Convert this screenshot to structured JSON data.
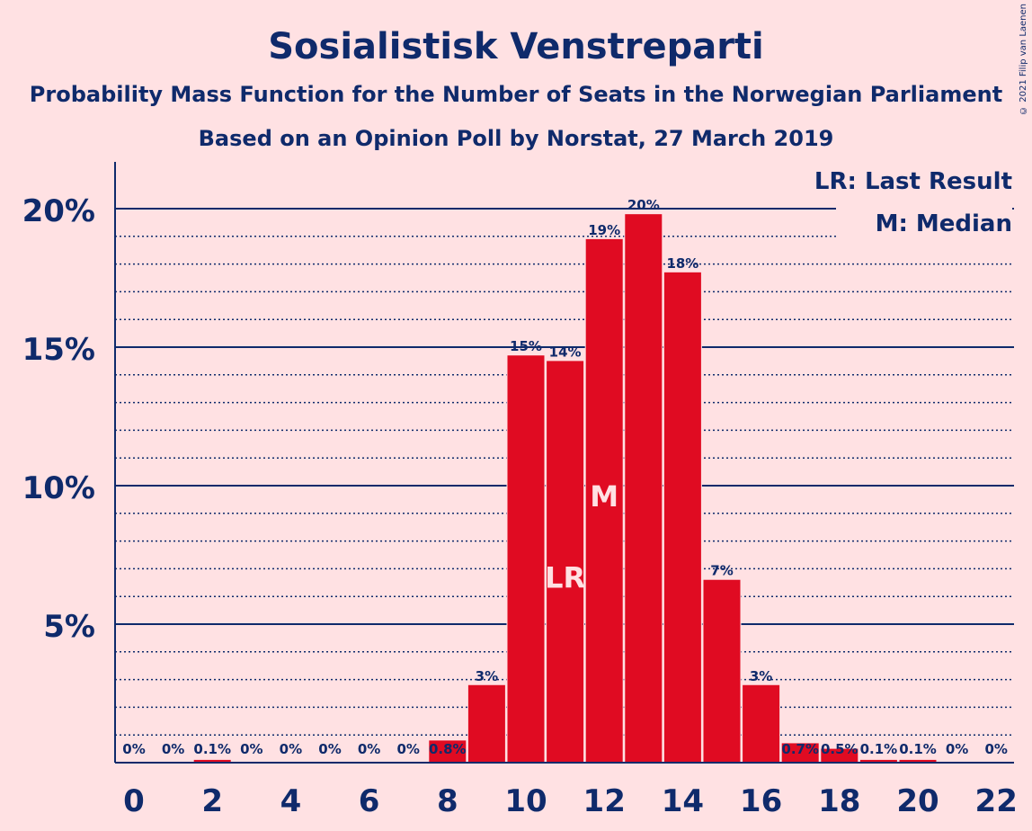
{
  "copyright": "© 2021 Filip van Laenen",
  "chart_data": {
    "type": "bar",
    "title": "Sosialistisk Venstreparti",
    "subtitle": "Probability Mass Function for the Number of Seats in the Norwegian Parliament",
    "subtitle2": "Based on an Opinion Poll by Norstat, 27 March 2019",
    "xlabel": "",
    "ylabel": "",
    "ylim": [
      0,
      21.5
    ],
    "y_ticks": [
      "5%",
      "10%",
      "15%",
      "20%"
    ],
    "y_tick_values": [
      5,
      10,
      15,
      20
    ],
    "x_tick_labels": [
      "0",
      "2",
      "4",
      "6",
      "8",
      "10",
      "12",
      "14",
      "16",
      "18",
      "20",
      "22"
    ],
    "categories": [
      0,
      1,
      2,
      3,
      4,
      5,
      6,
      7,
      8,
      9,
      10,
      11,
      12,
      13,
      14,
      15,
      16,
      17,
      18,
      19,
      20,
      21,
      22
    ],
    "values": [
      0,
      0,
      0.1,
      0,
      0,
      0,
      0,
      0,
      0.8,
      2.8,
      14.7,
      14.5,
      18.9,
      19.8,
      17.7,
      6.6,
      2.8,
      0.7,
      0.5,
      0.1,
      0.1,
      0,
      0
    ],
    "data_labels": [
      "0%",
      "0%",
      "0.1%",
      "0%",
      "0%",
      "0%",
      "0%",
      "0%",
      "0.8%",
      "3%",
      "15%",
      "14%",
      "19%",
      "20%",
      "18%",
      "7%",
      "3%",
      "0.7%",
      "0.5%",
      "0.1%",
      "0.1%",
      "0%",
      "0%"
    ],
    "bar_color": "#e00b22",
    "text_color": "#0f2a6b",
    "grid": true,
    "legend": [
      "LR: Last Result",
      "M: Median"
    ],
    "legend_position": "top-right",
    "markers": [
      {
        "seat": 11,
        "label": "LR"
      },
      {
        "seat": 12,
        "label": "M"
      }
    ]
  }
}
